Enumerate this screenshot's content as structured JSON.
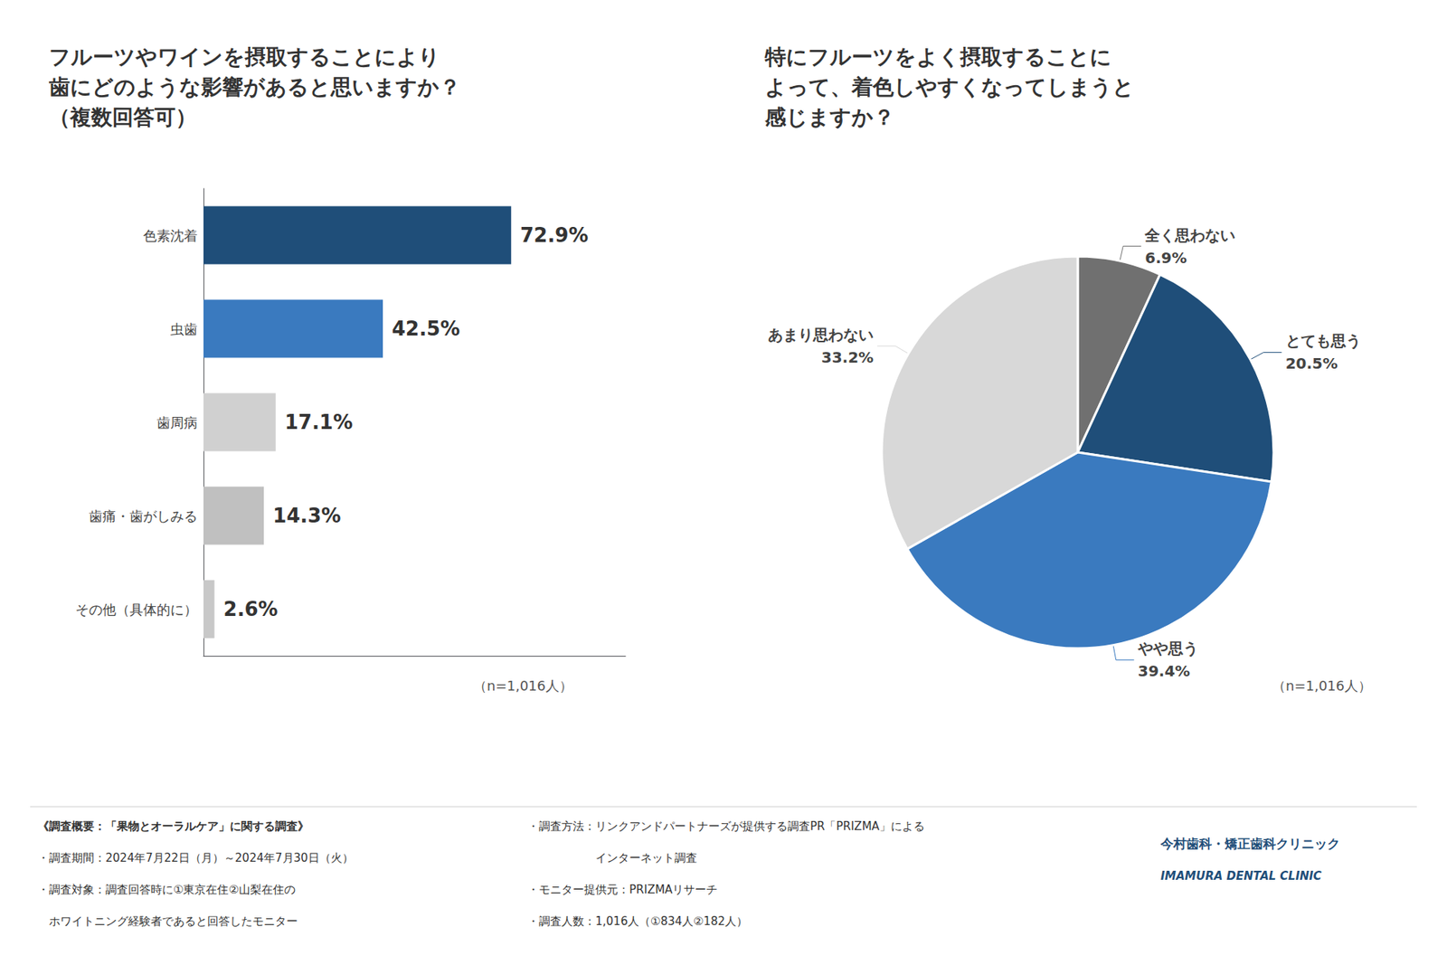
{
  "chart_data": [
    {
      "type": "bar",
      "title": "フルーツやワインを摂取することにより\n歯にどのような影響があると思いますか？\n（複数回答可）",
      "orientation": "horizontal",
      "categories": [
        "色素沈着",
        "虫歯",
        "歯周病",
        "歯痛・歯がしみる",
        "その他（具体的に）"
      ],
      "values": [
        72.9,
        42.5,
        17.1,
        14.3,
        2.6
      ],
      "value_labels": [
        "72.9%",
        "42.5%",
        "17.1%",
        "14.3%",
        "2.6%"
      ],
      "colors": [
        "#1f4e79",
        "#3a7abf",
        "#d0d0d0",
        "#c0c0c0",
        "#c8c8c8"
      ],
      "xlim": [
        0,
        100
      ],
      "data_labels": true,
      "tick_labels": "y",
      "grid": false,
      "annotations": [
        "（n=1,016人）"
      ]
    },
    {
      "type": "pie",
      "title": "特にフルーツをよく摂取することに\nよって、着色しやすくなってしまうと\n感じますか？",
      "categories": [
        "全く思わない",
        "とても思う",
        "やや思う",
        "あまり思わない"
      ],
      "values": [
        6.9,
        20.5,
        39.4,
        33.2
      ],
      "value_labels": [
        "6.9%",
        "20.5%",
        "39.4%",
        "33.2%"
      ],
      "colors": [
        "#707070",
        "#1f4e79",
        "#3a7abf",
        "#d8d8d8"
      ],
      "data_labels": true,
      "annotations": [
        "（n=1,016人）"
      ]
    }
  ],
  "annotations": [
    "《調査概要：「果物とオーラルケア」に関する調査》",
    "・調査期間：2024年7月22日（月）～2024年7月30日（火）",
    "・調査対象：調査回答時に①東京在住②山梨在住の",
    "　ホワイトニング経験者であると回答したモニター",
    "・調査方法：リンクアンドパートナーズが提供する調査PR「PRIZMA」による",
    "　　　　　　インターネット調査",
    "・モニター提供元：PRIZMAリサーチ",
    "・調査人数：1,016人（①834人②182人）",
    "今村歯科・矯正歯科クリニック",
    "IMAMURA DENTAL CLINIC"
  ]
}
